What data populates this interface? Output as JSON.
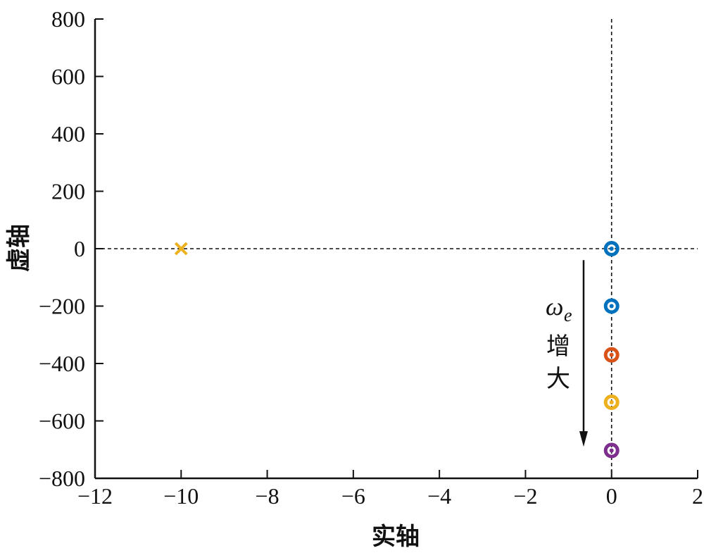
{
  "chart_data": {
    "type": "scatter",
    "title": "",
    "xlabel": "实轴",
    "ylabel": "虚轴",
    "xlim": [
      -12,
      2
    ],
    "ylim": [
      -800,
      800
    ],
    "xticks": [
      -12,
      -10,
      -8,
      -6,
      -4,
      -2,
      0,
      2
    ],
    "yticks": [
      -800,
      -600,
      -400,
      -200,
      0,
      200,
      400,
      600,
      800
    ],
    "xtick_labels": [
      "−12",
      "−10",
      "−8",
      "−6",
      "−4",
      "−2",
      "0",
      "2"
    ],
    "ytick_labels": [
      "−800",
      "−600",
      "−400",
      "−200",
      "0",
      "200",
      "400",
      "600",
      "800"
    ],
    "reference_lines": {
      "x": 0,
      "y": 0,
      "style": "dashed"
    },
    "pole": {
      "x": -10,
      "y": 0,
      "marker": "x",
      "color": "#EDB120"
    },
    "zeros": [
      {
        "x": 0,
        "y": 0,
        "color": "#0072BD"
      },
      {
        "x": 0,
        "y": -200,
        "color": "#0072BD"
      },
      {
        "x": 0,
        "y": -370,
        "color": "#D95319"
      },
      {
        "x": 0,
        "y": -535,
        "color": "#EDB120"
      },
      {
        "x": 0,
        "y": -703,
        "color": "#7E2F8E"
      }
    ],
    "annotation": {
      "symbol": "ω",
      "subscript": "e",
      "line1": "增",
      "line2": "大",
      "arrow": {
        "x": -0.65,
        "y_from": -40,
        "y_to": -690
      }
    }
  }
}
